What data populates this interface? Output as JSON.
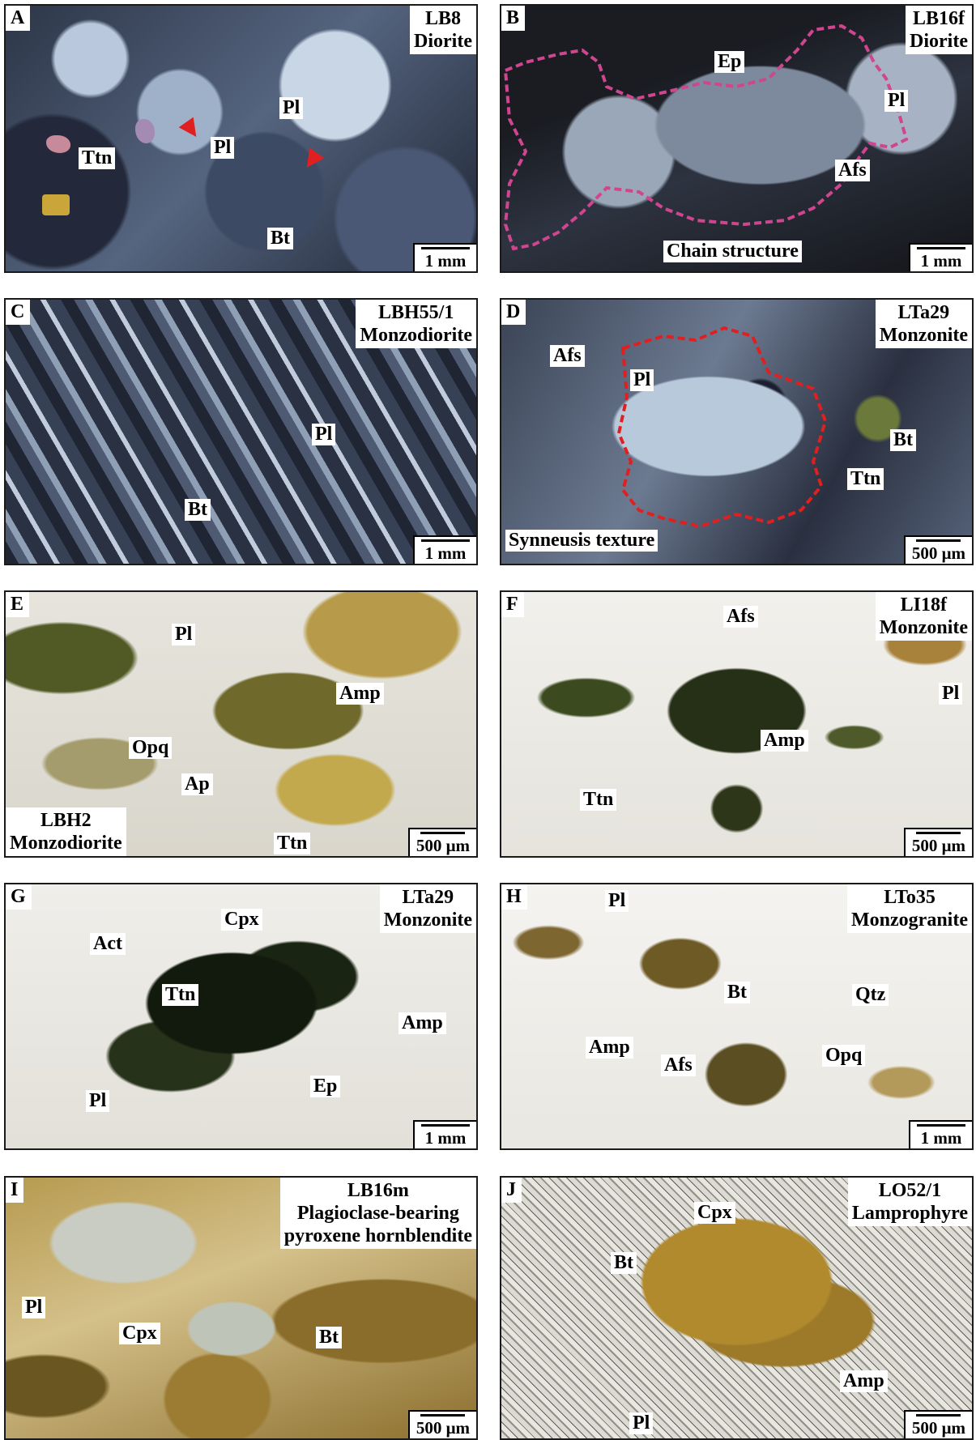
{
  "panels": [
    {
      "id": "A",
      "sample": [
        "LB8",
        "Diorite"
      ],
      "scale": "1 mm",
      "labels": [
        "Pl",
        "Pl",
        "Ttn",
        "Bt"
      ]
    },
    {
      "id": "B",
      "sample": [
        "LB16f",
        "Diorite"
      ],
      "scale": "1 mm",
      "labels": [
        "Ep",
        "Pl",
        "Afs",
        "Chain structure"
      ]
    },
    {
      "id": "C",
      "sample": [
        "LBH55/1",
        "Monzodiorite"
      ],
      "scale": "1 mm",
      "labels": [
        "Pl",
        "Bt"
      ]
    },
    {
      "id": "D",
      "sample": [
        "LTa29",
        "Monzonite"
      ],
      "scale": "500 μm",
      "labels": [
        "Afs",
        "Pl",
        "Bt",
        "Ttn",
        "Synneusis texture"
      ]
    },
    {
      "id": "E",
      "sample": [
        "LBH2",
        "Monzodiorite"
      ],
      "scale": "500 μm",
      "labels": [
        "Pl",
        "Amp",
        "Opq",
        "Ap",
        "Ttn"
      ]
    },
    {
      "id": "F",
      "sample": [
        "LI18f",
        "Monzonite"
      ],
      "scale": "500 μm",
      "labels": [
        "Afs",
        "Pl",
        "Amp",
        "Ttn"
      ]
    },
    {
      "id": "G",
      "sample": [
        "LTa29",
        "Monzonite"
      ],
      "scale": "1 mm",
      "labels": [
        "Cpx",
        "Act",
        "Ttn",
        "Amp",
        "Ep",
        "Pl"
      ]
    },
    {
      "id": "H",
      "sample": [
        "LTo35",
        "Monzogranite"
      ],
      "scale": "1 mm",
      "labels": [
        "Pl",
        "Bt",
        "Qtz",
        "Amp",
        "Afs",
        "Opq"
      ]
    },
    {
      "id": "I",
      "sample": [
        "LB16m",
        "Plagioclase-bearing",
        "pyroxene hornblendite"
      ],
      "scale": "500 μm",
      "labels": [
        "Pl",
        "Cpx",
        "Bt"
      ]
    },
    {
      "id": "J",
      "sample": [
        "LO52/1",
        "Lamprophyre"
      ],
      "scale": "500 μm",
      "labels": [
        "Cpx",
        "Bt",
        "Amp",
        "Pl"
      ]
    }
  ],
  "colors": {
    "xpl_background": "#2a3345",
    "ppl_background": "#ecebe6",
    "outline_pink": "#d0458f",
    "outline_red": "#e02020",
    "mineral_green": "#3c4a1f",
    "mineral_brown": "#8a6d2a"
  }
}
